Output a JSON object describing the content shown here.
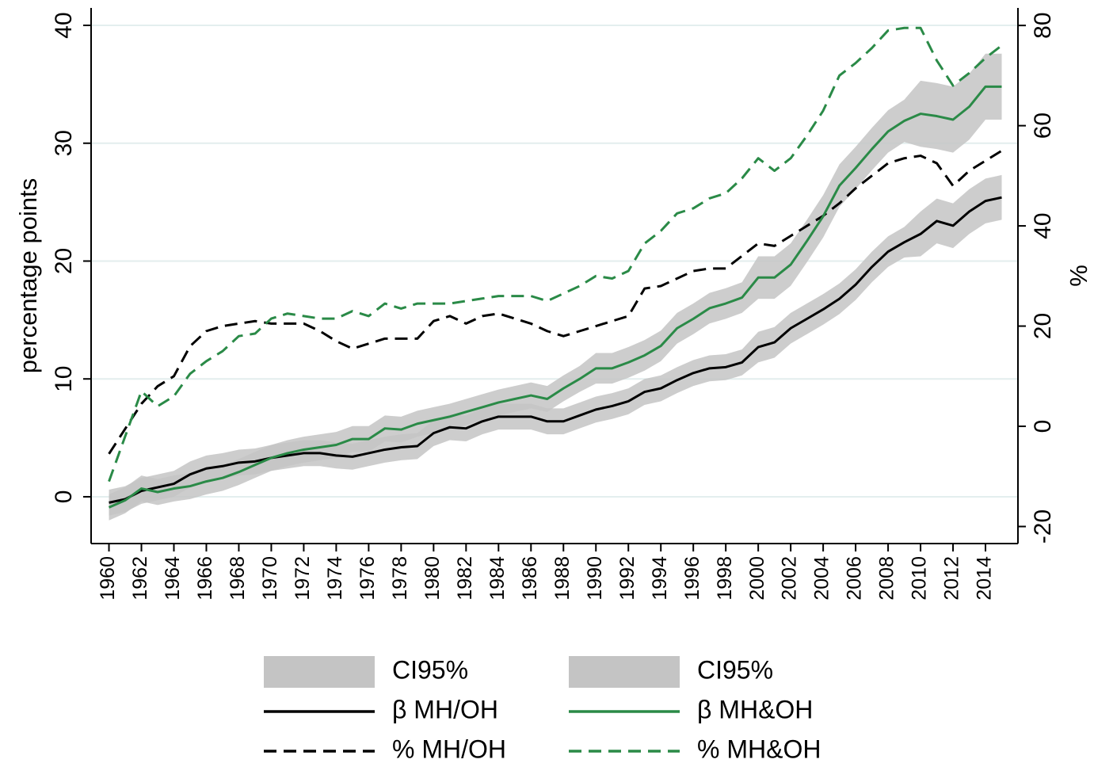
{
  "chart_data": {
    "type": "line",
    "y_label": "percentage points",
    "y2_label": "%",
    "x": [
      1960,
      1961,
      1962,
      1963,
      1964,
      1965,
      1966,
      1967,
      1968,
      1969,
      1970,
      1971,
      1972,
      1973,
      1974,
      1975,
      1976,
      1977,
      1978,
      1979,
      1980,
      1981,
      1982,
      1983,
      1984,
      1985,
      1986,
      1987,
      1988,
      1989,
      1990,
      1991,
      1992,
      1993,
      1994,
      1995,
      1996,
      1997,
      1998,
      1999,
      2000,
      2001,
      2002,
      2003,
      2004,
      2005,
      2006,
      2007,
      2008,
      2009,
      2010,
      2011,
      2012,
      2013,
      2014,
      2015
    ],
    "xlim": [
      1958.9,
      2016
    ],
    "xticks": [
      1960,
      1962,
      1964,
      1966,
      1968,
      1970,
      1972,
      1974,
      1976,
      1978,
      1980,
      1982,
      1984,
      1986,
      1988,
      1990,
      1992,
      1994,
      1996,
      1998,
      2000,
      2002,
      2004,
      2006,
      2008,
      2010,
      2012,
      2014
    ],
    "ylim": [
      -3.97,
      41.48
    ],
    "yticks": [
      0,
      10,
      20,
      30,
      40
    ],
    "y2lim": [
      -23.4,
      83.5
    ],
    "y2ticks": [
      -20,
      0,
      20,
      40,
      60,
      80
    ],
    "grid": true,
    "bands": [
      {
        "name": "CI95%",
        "color": "#c4c4c4",
        "lower": [
          -1.6,
          -1.3,
          -0.6,
          -0.3,
          0.0,
          0.8,
          1.3,
          1.5,
          1.8,
          1.9,
          2.2,
          2.4,
          2.6,
          2.6,
          2.4,
          2.3,
          2.6,
          2.9,
          3.1,
          3.2,
          4.3,
          4.8,
          4.7,
          5.3,
          5.7,
          5.7,
          5.7,
          5.3,
          5.3,
          5.8,
          6.3,
          6.6,
          7.0,
          7.8,
          8.1,
          8.8,
          9.4,
          9.8,
          9.9,
          10.3,
          11.4,
          11.8,
          13.0,
          13.8,
          14.6,
          15.5,
          16.7,
          18.2,
          19.5,
          20.3,
          20.4,
          21.5,
          21.1,
          22.3,
          23.2,
          23.5
        ],
        "upper": [
          0.6,
          0.9,
          1.6,
          1.9,
          2.2,
          3.0,
          3.5,
          3.7,
          4.0,
          4.1,
          4.4,
          4.6,
          4.8,
          4.8,
          4.6,
          4.5,
          4.8,
          5.1,
          5.3,
          5.4,
          6.5,
          7.0,
          6.9,
          7.5,
          7.9,
          7.9,
          7.9,
          7.5,
          7.5,
          8.0,
          8.5,
          8.8,
          9.2,
          10.0,
          10.3,
          11.0,
          11.6,
          12.0,
          12.1,
          12.5,
          14.0,
          14.4,
          15.6,
          16.4,
          17.2,
          18.1,
          19.3,
          20.8,
          22.1,
          22.9,
          24.2,
          25.3,
          24.9,
          26.1,
          27.0,
          27.3
        ]
      },
      {
        "name": "CI95%",
        "color": "#c4c4c4",
        "lower": [
          -2.0,
          -1.4,
          -0.4,
          -0.7,
          -0.4,
          -0.2,
          0.2,
          0.5,
          1.0,
          1.6,
          2.2,
          2.6,
          2.9,
          3.1,
          3.3,
          3.8,
          3.8,
          4.7,
          4.6,
          5.1,
          5.4,
          5.7,
          6.1,
          6.5,
          6.9,
          7.2,
          7.5,
          7.2,
          8.1,
          8.9,
          9.6,
          9.6,
          10.1,
          10.7,
          11.5,
          13.0,
          13.8,
          14.7,
          15.1,
          15.6,
          16.8,
          16.8,
          17.9,
          19.9,
          22.0,
          24.6,
          26.1,
          27.7,
          29.2,
          30.1,
          29.7,
          29.5,
          29.2,
          30.3,
          32.0,
          32.0
        ],
        "upper": [
          0.2,
          0.8,
          1.8,
          1.5,
          1.8,
          2.0,
          2.4,
          2.7,
          3.2,
          3.8,
          4.4,
          4.8,
          5.1,
          5.3,
          5.5,
          6.0,
          6.0,
          6.9,
          6.8,
          7.3,
          7.6,
          7.9,
          8.3,
          8.7,
          9.1,
          9.4,
          9.7,
          9.4,
          10.3,
          11.1,
          12.2,
          12.2,
          12.7,
          13.3,
          14.1,
          15.6,
          16.4,
          17.3,
          17.7,
          18.2,
          20.4,
          20.4,
          21.5,
          23.5,
          25.6,
          28.2,
          29.7,
          31.3,
          32.8,
          33.7,
          35.3,
          35.1,
          34.8,
          35.9,
          37.6,
          37.6
        ]
      }
    ],
    "series": [
      {
        "name": "β MH/OH",
        "color": "#000000",
        "dashed": false,
        "values": [
          -0.5,
          -0.2,
          0.5,
          0.8,
          1.1,
          1.9,
          2.4,
          2.6,
          2.9,
          3.0,
          3.3,
          3.5,
          3.7,
          3.7,
          3.5,
          3.4,
          3.7,
          4.0,
          4.2,
          4.3,
          5.4,
          5.9,
          5.8,
          6.4,
          6.8,
          6.8,
          6.8,
          6.4,
          6.4,
          6.9,
          7.4,
          7.7,
          8.1,
          8.9,
          9.2,
          9.9,
          10.5,
          10.9,
          11.0,
          11.4,
          12.7,
          13.1,
          14.3,
          15.1,
          15.9,
          16.8,
          18.0,
          19.5,
          20.8,
          21.6,
          22.3,
          23.4,
          23.0,
          24.2,
          25.1,
          25.4
        ]
      },
      {
        "name": "% MH/OH",
        "color": "#000000",
        "dashed": true,
        "axis": "y2",
        "values": [
          -5.5,
          -0.5,
          4.5,
          8,
          10,
          16,
          19,
          20,
          20.5,
          21,
          20.5,
          20.5,
          20.5,
          19,
          17,
          15.5,
          16.5,
          17.5,
          17.5,
          17.5,
          21,
          22,
          20.5,
          22,
          22.5,
          21.5,
          20.5,
          19,
          18,
          19,
          20,
          21,
          22,
          27.5,
          28,
          29.5,
          31,
          31.5,
          31.5,
          34,
          36.5,
          36,
          38,
          40,
          42,
          44.5,
          47.5,
          50,
          52.5,
          53.5,
          54,
          52.5,
          48,
          51,
          53,
          55
        ]
      },
      {
        "name": "β MH&OH",
        "color": "#2a8a47",
        "dashed": false,
        "values": [
          -0.9,
          -0.3,
          0.7,
          0.4,
          0.7,
          0.9,
          1.3,
          1.6,
          2.1,
          2.7,
          3.3,
          3.7,
          4.0,
          4.2,
          4.4,
          4.9,
          4.9,
          5.8,
          5.7,
          6.2,
          6.5,
          6.8,
          7.2,
          7.6,
          8.0,
          8.3,
          8.6,
          8.3,
          9.2,
          10.0,
          10.9,
          10.9,
          11.4,
          12.0,
          12.8,
          14.3,
          15.1,
          16.0,
          16.4,
          16.9,
          18.6,
          18.6,
          19.7,
          21.7,
          23.8,
          26.4,
          27.9,
          29.5,
          31.0,
          31.9,
          32.5,
          32.3,
          32.0,
          33.1,
          34.8,
          34.8
        ]
      },
      {
        "name": "% MH&OH",
        "color": "#2a8a47",
        "dashed": true,
        "axis": "y2",
        "values": [
          -11,
          -2,
          7,
          4,
          6,
          10.5,
          13,
          15,
          18,
          18.5,
          21.5,
          22.5,
          22,
          21.5,
          21.5,
          23,
          22,
          24.5,
          23.5,
          24.5,
          24.5,
          24.5,
          25,
          25.5,
          26,
          26,
          26,
          25,
          26.5,
          28,
          30,
          29.5,
          31,
          36.5,
          39,
          42.5,
          43.5,
          45.5,
          46.5,
          49.5,
          53.5,
          51,
          53.5,
          58,
          63,
          70,
          72.5,
          75.5,
          79,
          79.5,
          79.5,
          73,
          68,
          70.5,
          73.5,
          76
        ]
      }
    ]
  }
}
